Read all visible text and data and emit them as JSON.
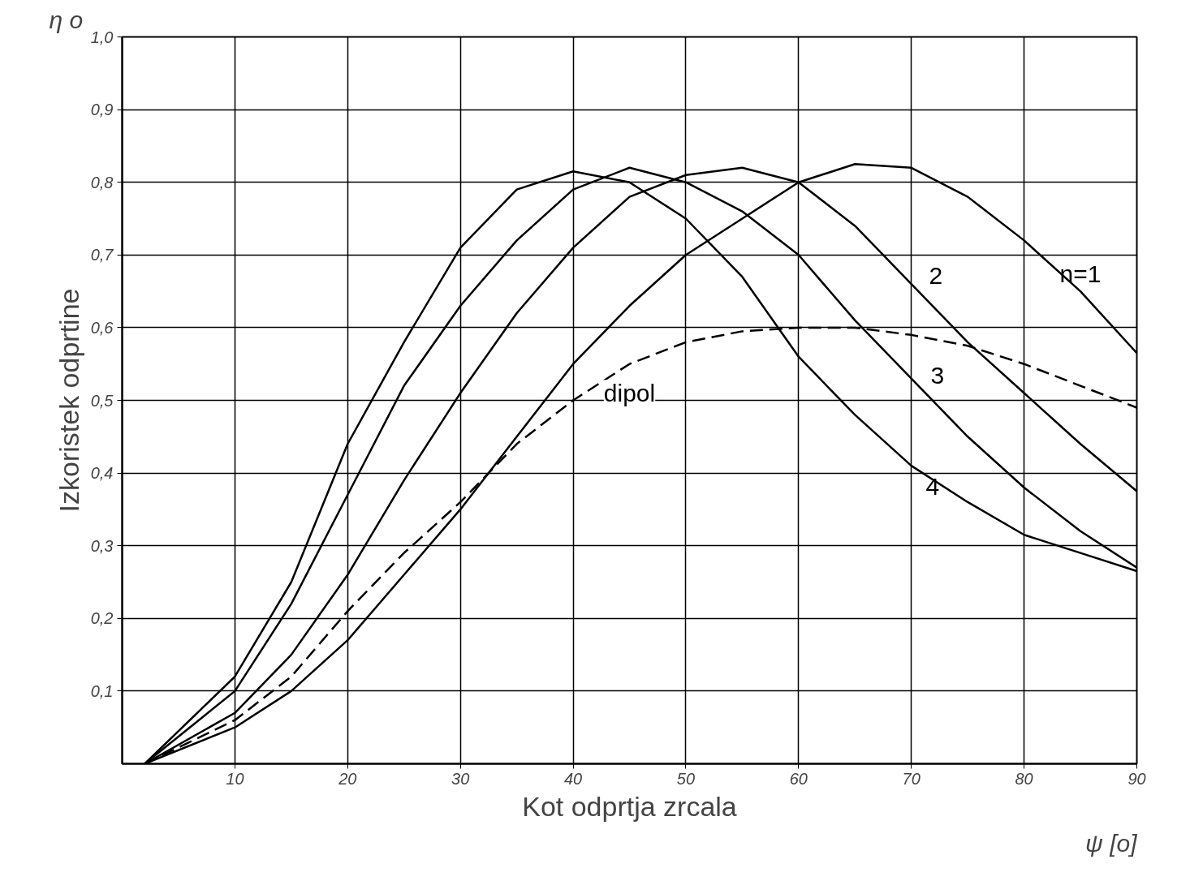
{
  "chart_data": {
    "type": "line",
    "xlabel": "Kot odprtja zrcala",
    "ylabel": "Izkoristek odprtine",
    "xlim": [
      0,
      90
    ],
    "ylim": [
      0,
      1.0
    ],
    "xticks": [
      10,
      20,
      30,
      40,
      50,
      60,
      70,
      80,
      90
    ],
    "yticks": [
      {
        "value": 0.1,
        "label": "0,1"
      },
      {
        "value": 0.2,
        "label": "0,2"
      },
      {
        "value": 0.3,
        "label": "0,3"
      },
      {
        "value": 0.4,
        "label": "0,4"
      },
      {
        "value": 0.5,
        "label": "0,5"
      },
      {
        "value": 0.6,
        "label": "0,6"
      },
      {
        "value": 0.7,
        "label": "0,7"
      },
      {
        "value": 0.8,
        "label": "0,8"
      },
      {
        "value": 0.9,
        "label": "0,9"
      },
      {
        "value": 1.0,
        "label": "1,0"
      }
    ],
    "grid": true,
    "marker": "none",
    "x": [
      2,
      10,
      15,
      20,
      25,
      30,
      35,
      40,
      45,
      50,
      55,
      60,
      65,
      70,
      75,
      80,
      85,
      90
    ],
    "series": [
      {
        "name": "n=1",
        "color": "#000000",
        "line_style": "solid",
        "values": [
          0,
          0.05,
          0.1,
          0.17,
          0.26,
          0.35,
          0.45,
          0.55,
          0.63,
          0.7,
          0.75,
          0.8,
          0.825,
          0.82,
          0.78,
          0.72,
          0.65,
          0.565
        ]
      },
      {
        "name": "2",
        "color": "#000000",
        "line_style": "solid",
        "values": [
          0,
          0.07,
          0.15,
          0.26,
          0.39,
          0.51,
          0.62,
          0.71,
          0.78,
          0.81,
          0.82,
          0.8,
          0.74,
          0.66,
          0.58,
          0.51,
          0.44,
          0.375
        ]
      },
      {
        "name": "3",
        "color": "#000000",
        "line_style": "solid",
        "values": [
          0,
          0.1,
          0.22,
          0.37,
          0.52,
          0.63,
          0.72,
          0.79,
          0.82,
          0.8,
          0.76,
          0.7,
          0.61,
          0.53,
          0.45,
          0.38,
          0.32,
          0.27
        ]
      },
      {
        "name": "4",
        "color": "#000000",
        "line_style": "solid",
        "values": [
          0,
          0.12,
          0.25,
          0.44,
          0.58,
          0.71,
          0.79,
          0.815,
          0.8,
          0.75,
          0.67,
          0.56,
          0.48,
          0.41,
          0.36,
          0.315,
          0.29,
          0.265
        ]
      },
      {
        "name": "dipol",
        "color": "#000000",
        "line_style": "dashed",
        "values": [
          0,
          0.06,
          0.12,
          0.21,
          0.29,
          0.36,
          0.44,
          0.5,
          0.55,
          0.58,
          0.595,
          0.6,
          0.6,
          0.59,
          0.575,
          0.55,
          0.52,
          0.49
        ]
      }
    ],
    "annotations": [
      "η o",
      "ψ [o]"
    ]
  }
}
